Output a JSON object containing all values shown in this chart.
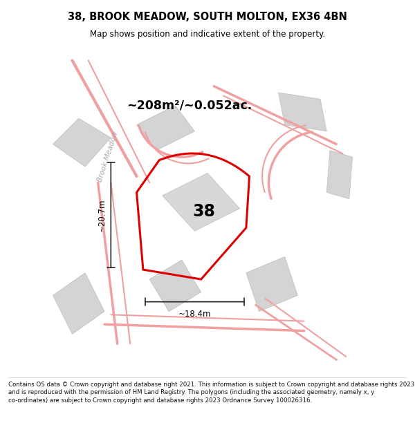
{
  "title": "38, BROOK MEADOW, SOUTH MOLTON, EX36 4BN",
  "subtitle": "Map shows position and indicative extent of the property.",
  "area_label": "~208m²/~0.052ac.",
  "property_number": "38",
  "dim_width": "~18.4m",
  "dim_height": "~20.7m",
  "street_label": "Brook Meadow",
  "footer": "Contains OS data © Crown copyright and database right 2021. This information is subject to Crown copyright and database rights 2023 and is reproduced with the permission of HM Land Registry. The polygons (including the associated geometry, namely x, y co-ordinates) are subject to Crown copyright and database rights 2023 Ordnance Survey 100026316.",
  "map_bg": "#eeeeee",
  "road_pink": "#f0a0a0",
  "road_pink2": "#f5c0c0",
  "building_color": "#d4d4d4",
  "building_edge": "#bbbbbb",
  "property_outline_color": "#dd0000",
  "dim_line_color": "#222222",
  "title_color": "#000000",
  "footer_color": "#111111",
  "white": "#ffffff"
}
